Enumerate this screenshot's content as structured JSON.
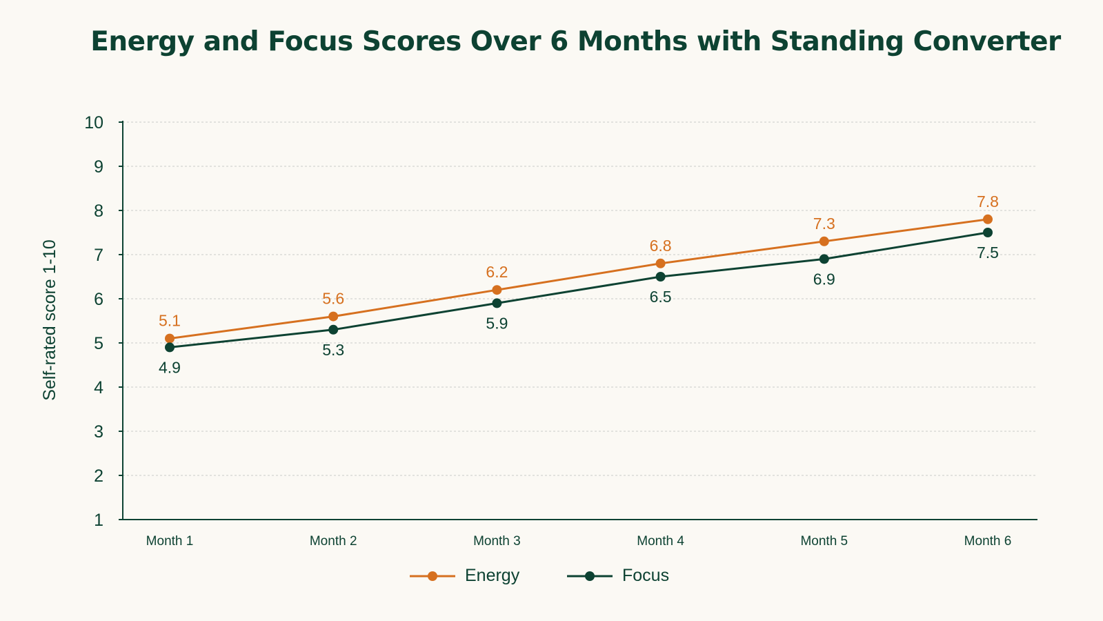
{
  "chart_data": {
    "type": "line",
    "title": "Energy and Focus Scores Over 6 Months with Standing Converter",
    "xlabel": "",
    "ylabel": "Self-rated score 1-10",
    "categories": [
      "Month 1",
      "Month 2",
      "Month 3",
      "Month 4",
      "Month 5",
      "Month 6"
    ],
    "ylim": [
      1,
      10
    ],
    "yticks": [
      "1",
      "2",
      "3",
      "4",
      "5",
      "6",
      "7",
      "8",
      "9",
      "10"
    ],
    "grid": true,
    "legend_position": "bottom-center",
    "series": [
      {
        "name": "Energy",
        "color": "#d6701f",
        "values": [
          5.1,
          5.6,
          6.2,
          6.8,
          7.3,
          7.8
        ],
        "labels": [
          "5.1",
          "5.6",
          "6.2",
          "6.8",
          "7.3",
          "7.8"
        ],
        "label_position": "above"
      },
      {
        "name": "Focus",
        "color": "#0d4232",
        "values": [
          4.9,
          5.3,
          5.9,
          6.5,
          6.9,
          7.5
        ],
        "labels": [
          "4.9",
          "5.3",
          "5.9",
          "6.5",
          "6.9",
          "7.5"
        ],
        "label_position": "below"
      }
    ]
  }
}
